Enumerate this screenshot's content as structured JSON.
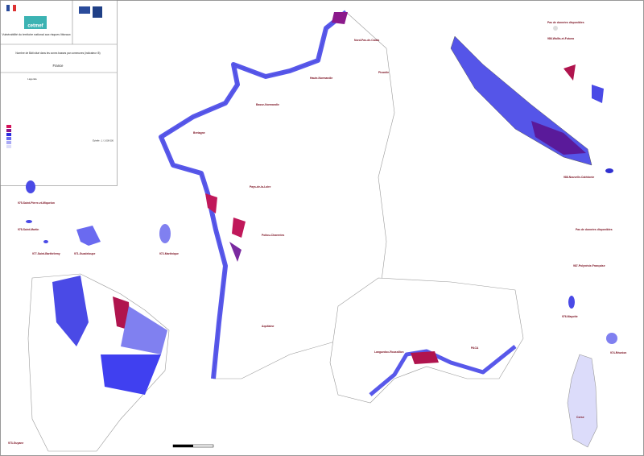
{
  "header": {
    "logo": "cetmef",
    "title": "Vulnérabilité du territoire national aux risques littoraux",
    "subtitle": "Nombre de Bâti situé dans les zones basses par communes (indicateur I5)",
    "region": "France"
  },
  "legend": {
    "title": "Légende",
    "scale": "Échelle : 1 / 1 000 000"
  },
  "labels": [
    "Nord-Pas-de-Calais",
    "Picardie",
    "Haute-Normandie",
    "Basse-Normandie",
    "Bretagne",
    "Pays-de-la-Loire",
    "Poitou-Charentes",
    "Aquitaine",
    "Languedoc-Roussillon",
    "PACA",
    "Corse",
    "975-Saint-Pierre-et-Miquelon",
    "978-Saint-Martin",
    "977-Saint-Barthélemy",
    "971-Guadeloupe",
    "972-Martinique",
    "973-Guyane",
    "976-Mayotte",
    "974-Réunion",
    "988-Nouvelle-Calédonie",
    "986-Wallis-et-Futuna",
    "987-Polynésie-Française",
    "Pas de données disponibles",
    "Pas de données disponibles"
  ]
}
